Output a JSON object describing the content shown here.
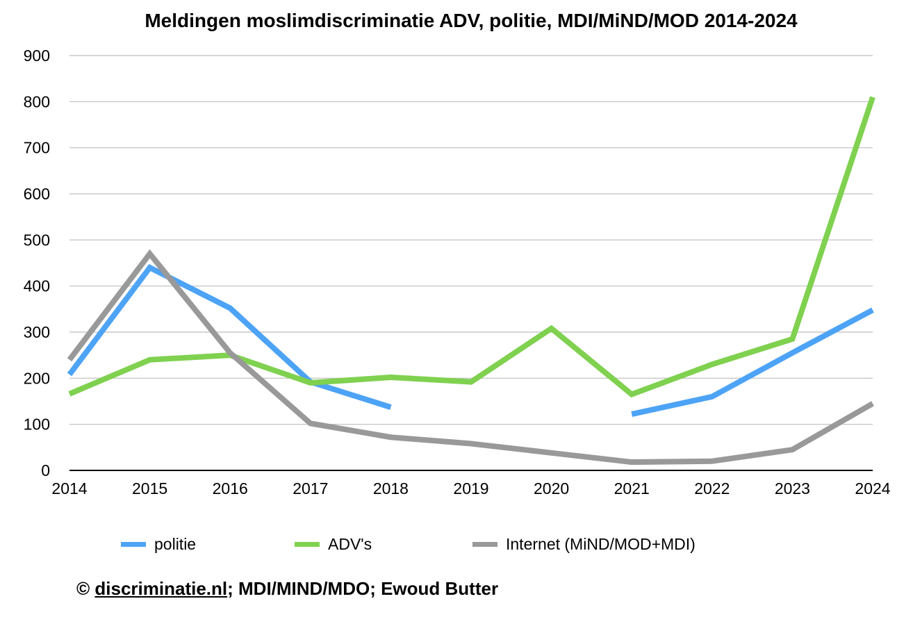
{
  "chart_data": {
    "type": "line",
    "title": "Meldingen moslimdiscriminatie ADV, politie, MDI/MiND/MOD 2014-2024",
    "xlabel": "",
    "ylabel": "",
    "ylim": [
      0,
      900
    ],
    "y_ticks": [
      "0",
      "100",
      "200",
      "300",
      "400",
      "500",
      "600",
      "700",
      "800",
      "900"
    ],
    "categories": [
      "2014",
      "2015",
      "2016",
      "2017",
      "2018",
      "2019",
      "2020",
      "2021",
      "2022",
      "2023",
      "2024"
    ],
    "grid": "horizontal",
    "legend_position": "bottom",
    "series": [
      {
        "name": "politie",
        "color": "#4da3f5",
        "values": [
          208,
          440,
          352,
          192,
          137,
          null,
          null,
          122,
          160,
          255,
          348
        ]
      },
      {
        "name": "ADV's",
        "color": "#7fd14f",
        "values": [
          166,
          240,
          250,
          190,
          202,
          192,
          308,
          165,
          230,
          285,
          810
        ]
      },
      {
        "name": "Internet (MiND/MOD+MDI)",
        "color": "#999999",
        "values": [
          240,
          470,
          255,
          102,
          72,
          58,
          38,
          18,
          20,
          45,
          145
        ]
      }
    ]
  },
  "credit": {
    "prefix": "© ",
    "link": "discriminatie.nl",
    "suffix": "; MDI/MIND/MDO; Ewoud Butter"
  }
}
